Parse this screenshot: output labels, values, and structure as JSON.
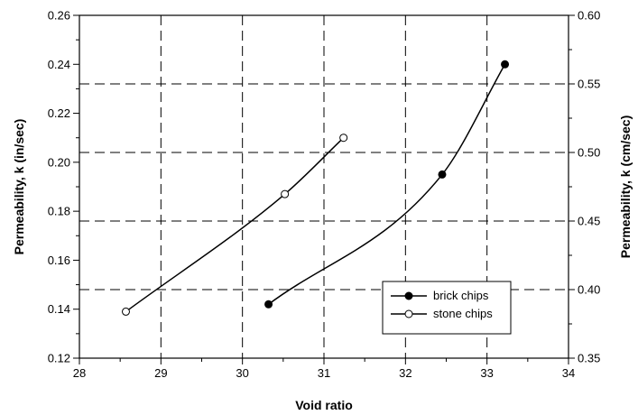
{
  "chart_data": {
    "type": "line",
    "xlabel": "Void ratio",
    "ylabel": "Permeability, k (in/sec)",
    "y2label": "Permeability, k (cm/sec)",
    "xlim": [
      28,
      34
    ],
    "ylim": [
      0.12,
      0.26
    ],
    "y2lim": [
      0.35,
      0.6
    ],
    "xticks": [
      "28",
      "29",
      "30",
      "31",
      "32",
      "33",
      "34"
    ],
    "yticks": [
      "0.12",
      "0.14",
      "0.16",
      "0.18",
      "0.20",
      "0.22",
      "0.24",
      "0.26"
    ],
    "y2ticks": [
      "0.35",
      "0.40",
      "0.45",
      "0.50",
      "0.55",
      "0.60"
    ],
    "grid": true,
    "legend_position": "lower-right",
    "series": [
      {
        "name": "brick chips",
        "marker": "filled-circle",
        "x": [
          30.32,
          32.45,
          33.22
        ],
        "y": [
          0.142,
          0.195,
          0.24
        ]
      },
      {
        "name": "stone chips",
        "marker": "open-circle",
        "x": [
          28.57,
          30.52,
          31.24
        ],
        "y": [
          0.139,
          0.187,
          0.21
        ]
      }
    ]
  }
}
